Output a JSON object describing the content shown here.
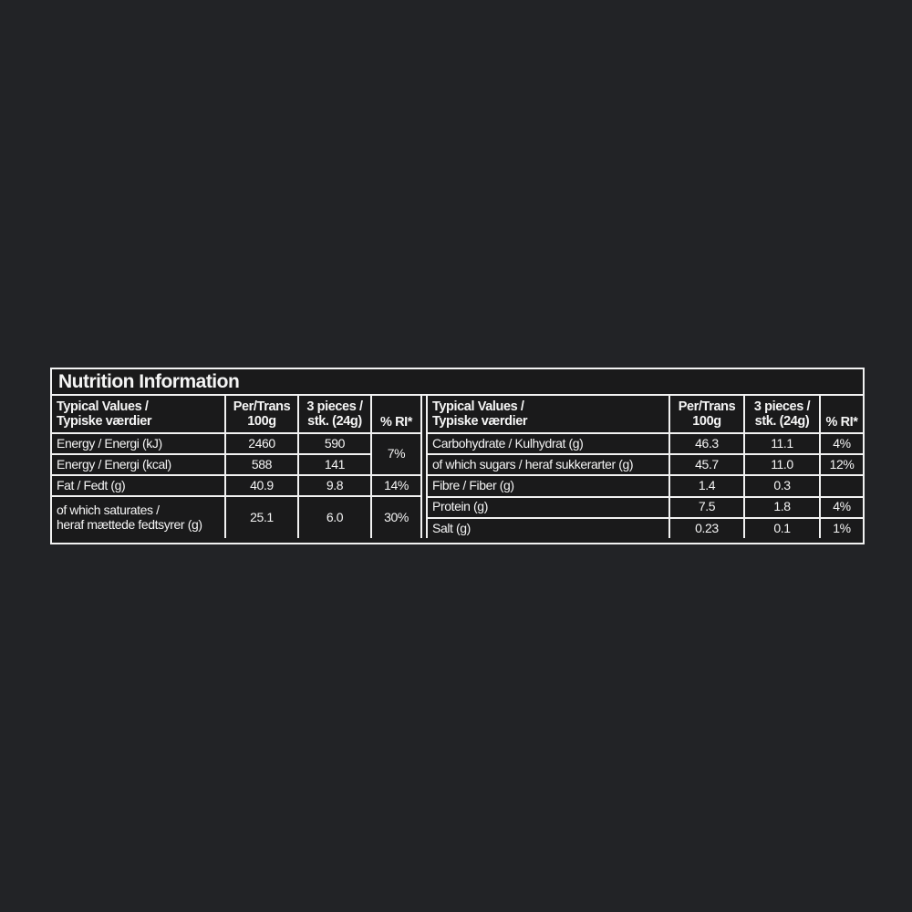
{
  "background_color": "#222326",
  "label": {
    "title": "Nutrition Information",
    "colors": {
      "panel_bg": "#1a1a1b",
      "line": "#f2f2f2",
      "text": "#f5f5f5"
    },
    "left_table": {
      "headers": {
        "label": "Typical Values /\nTypiske værdier",
        "per100": "Per/Trans\n100g",
        "serving": "3 pieces /\nstk. (24g)",
        "ri": "% RI*"
      },
      "rows": [
        {
          "label": "Energy / Energi (kJ)",
          "per100": "2460",
          "serving": "590",
          "ri": "7%"
        },
        {
          "label": "Energy / Energi (kcal)",
          "per100": "588",
          "serving": "141"
        },
        {
          "label": "Fat / Fedt (g)",
          "per100": "40.9",
          "serving": "9.8",
          "ri": "14%"
        },
        {
          "label": "of which saturates /\nheraf mættede fedtsyrer (g)",
          "per100": "25.1",
          "serving": "6.0",
          "ri": "30%"
        }
      ]
    },
    "right_table": {
      "headers": {
        "label": "Typical Values /\nTypiske værdier",
        "per100": "Per/Trans\n100g",
        "serving": "3 pieces /\nstk. (24g)",
        "ri": "% RI*"
      },
      "rows": [
        {
          "label": "Carbohydrate / Kulhydrat (g)",
          "per100": "46.3",
          "serving": "11.1",
          "ri": "4%"
        },
        {
          "label": "of which sugars / heraf sukkerarter (g)",
          "per100": "45.7",
          "serving": "11.0",
          "ri": "12%"
        },
        {
          "label": "Fibre / Fiber (g)",
          "per100": "1.4",
          "serving": "0.3",
          "ri": ""
        },
        {
          "label": "Protein (g)",
          "per100": "7.5",
          "serving": "1.8",
          "ri": "4%"
        },
        {
          "label": "Salt (g)",
          "per100": "0.23",
          "serving": "0.1",
          "ri": "1%"
        }
      ]
    }
  }
}
